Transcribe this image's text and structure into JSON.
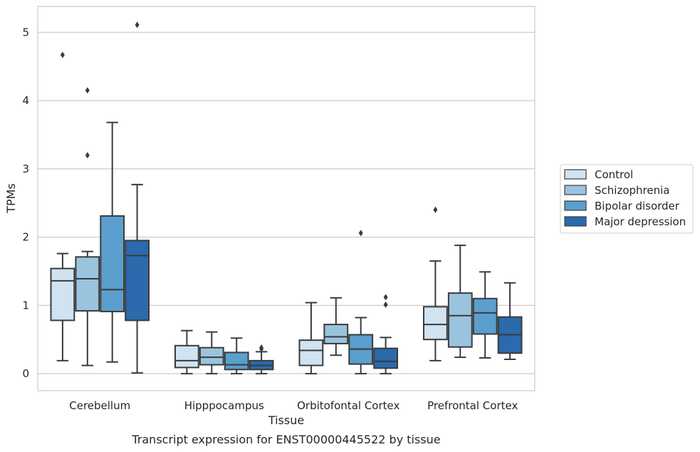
{
  "chart_data": {
    "type": "box",
    "title": "",
    "xlabel": "Tissue",
    "ylabel": "TPMs",
    "caption": "Transcript expression for ENST00000445522 by tissue",
    "categories": [
      "Cerebellum",
      "Hipppocampus",
      "Orbitofontal Cortex",
      "Prefrontal Cortex"
    ],
    "ylim": [
      -0.25,
      5.38
    ],
    "yticks": [
      0,
      1,
      2,
      3,
      4,
      5
    ],
    "grid": "horizontal",
    "legend_position": "right",
    "series": [
      {
        "name": "Control",
        "color": "#d1e2f1",
        "boxes": [
          {
            "whislo": 0.19,
            "q1": 0.78,
            "med": 1.36,
            "q3": 1.54,
            "whishi": 1.76,
            "fliers": [
              4.67
            ]
          },
          {
            "whislo": 0.0,
            "q1": 0.09,
            "med": 0.19,
            "q3": 0.41,
            "whishi": 0.63,
            "fliers": []
          },
          {
            "whislo": 0.0,
            "q1": 0.12,
            "med": 0.34,
            "q3": 0.49,
            "whishi": 1.04,
            "fliers": []
          },
          {
            "whislo": 0.19,
            "q1": 0.5,
            "med": 0.72,
            "q3": 0.98,
            "whishi": 1.65,
            "fliers": [
              2.4
            ]
          }
        ]
      },
      {
        "name": "Schizophrenia",
        "color": "#9ac3de",
        "boxes": [
          {
            "whislo": 0.12,
            "q1": 0.92,
            "med": 1.39,
            "q3": 1.71,
            "whishi": 1.79,
            "fliers": [
              4.15,
              3.2
            ]
          },
          {
            "whislo": 0.0,
            "q1": 0.13,
            "med": 0.24,
            "q3": 0.38,
            "whishi": 0.61,
            "fliers": []
          },
          {
            "whislo": 0.27,
            "q1": 0.44,
            "med": 0.54,
            "q3": 0.72,
            "whishi": 1.11,
            "fliers": []
          },
          {
            "whislo": 0.24,
            "q1": 0.39,
            "med": 0.85,
            "q3": 1.18,
            "whishi": 1.88,
            "fliers": []
          }
        ]
      },
      {
        "name": "Bipolar disorder",
        "color": "#5a9fcd",
        "boxes": [
          {
            "whislo": 0.17,
            "q1": 0.91,
            "med": 1.23,
            "q3": 2.31,
            "whishi": 3.68,
            "fliers": []
          },
          {
            "whislo": 0.0,
            "q1": 0.06,
            "med": 0.13,
            "q3": 0.31,
            "whishi": 0.52,
            "fliers": []
          },
          {
            "whislo": 0.0,
            "q1": 0.14,
            "med": 0.36,
            "q3": 0.57,
            "whishi": 0.82,
            "fliers": [
              2.06
            ]
          },
          {
            "whislo": 0.23,
            "q1": 0.58,
            "med": 0.89,
            "q3": 1.1,
            "whishi": 1.49,
            "fliers": []
          }
        ]
      },
      {
        "name": "Major depression",
        "color": "#2a6aad",
        "boxes": [
          {
            "whislo": 0.01,
            "q1": 0.78,
            "med": 1.73,
            "q3": 1.95,
            "whishi": 2.77,
            "fliers": [
              5.11
            ]
          },
          {
            "whislo": 0.0,
            "q1": 0.06,
            "med": 0.12,
            "q3": 0.19,
            "whishi": 0.32,
            "fliers": [
              0.38,
              0.36
            ]
          },
          {
            "whislo": 0.0,
            "q1": 0.08,
            "med": 0.18,
            "q3": 0.37,
            "whishi": 0.53,
            "fliers": [
              1.12,
              1.01
            ]
          },
          {
            "whislo": 0.21,
            "q1": 0.3,
            "med": 0.57,
            "q3": 0.83,
            "whishi": 1.33,
            "fliers": []
          }
        ]
      }
    ]
  }
}
